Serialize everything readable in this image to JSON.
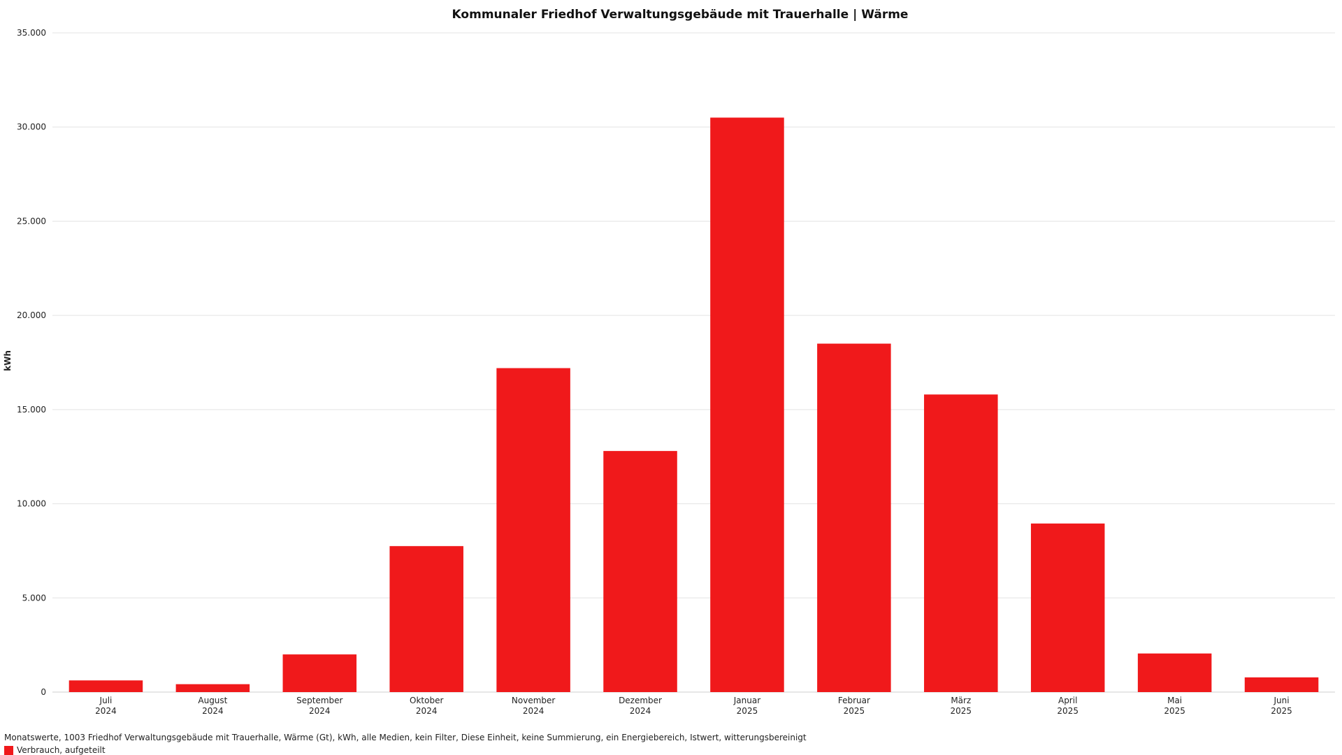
{
  "colors": {
    "bar": "#f0191b"
  },
  "footer": {
    "note": "Monatswerte, 1003 Friedhof Verwaltungsgebäude mit Trauerhalle, Wärme (Gt), kWh, alle Medien, kein Filter, Diese Einheit, keine Summierung, ein Energiebereich, Istwert, witterungsbereinigt"
  },
  "legend": {
    "label": "Verbrauch, aufgeteilt"
  },
  "chart_data": {
    "type": "bar",
    "title": "Kommunaler Friedhof Verwaltungsgebäude mit Trauerhalle | Wärme",
    "xlabel": "",
    "ylabel": "kWh",
    "ylim": [
      0,
      35000
    ],
    "grid": true,
    "legend_position": "bottom-left",
    "y_ticks": [
      0,
      5000,
      10000,
      15000,
      20000,
      25000,
      30000,
      35000
    ],
    "y_tick_labels": [
      "0",
      "5.000",
      "10.000",
      "15.000",
      "20.000",
      "25.000",
      "30.000",
      "35.000"
    ],
    "categories": [
      [
        "Juli",
        "2024"
      ],
      [
        "August",
        "2024"
      ],
      [
        "September",
        "2024"
      ],
      [
        "Oktober",
        "2024"
      ],
      [
        "November",
        "2024"
      ],
      [
        "Dezember",
        "2024"
      ],
      [
        "Januar",
        "2025"
      ],
      [
        "Februar",
        "2025"
      ],
      [
        "März",
        "2025"
      ],
      [
        "April",
        "2025"
      ],
      [
        "Mai",
        "2025"
      ],
      [
        "Juni",
        "2025"
      ]
    ],
    "series": [
      {
        "name": "Verbrauch, aufgeteilt",
        "values": [
          620,
          420,
          2000,
          7750,
          17200,
          12800,
          30500,
          18500,
          15800,
          8950,
          2050,
          780
        ]
      }
    ]
  }
}
